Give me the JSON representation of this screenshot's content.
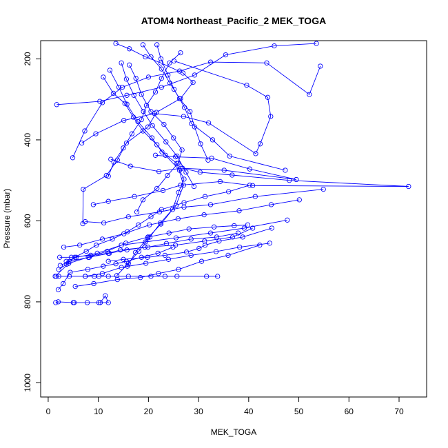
{
  "chart_data": {
    "type": "line",
    "title": "ATOM4 Northeast_Pacific_2 MEK_TOGA",
    "xlabel": "MEK_TOGA",
    "ylabel": "Pressure (mbar)",
    "xlim": [
      -1.5,
      75.5
    ],
    "ylim": [
      1035,
      155
    ],
    "y_inverted": true,
    "x_ticks": [
      "0",
      "10",
      "20",
      "30",
      "40",
      "50",
      "60",
      "70"
    ],
    "y_ticks": [
      "200",
      "400",
      "600",
      "800",
      "1000"
    ],
    "series": [
      {
        "color": "#0000ff",
        "x": [
          1.5,
          2.0,
          5.2,
          10.4,
          11.4,
          12.0,
          10.1,
          7.8,
          5.0
        ],
        "y": [
          802,
          800,
          802,
          802,
          785,
          802,
          802,
          802,
          802
        ]
      },
      {
        "color": "#0000ff",
        "x": [
          1.6,
          2.1,
          4.2,
          7.4,
          9.2,
          10.1,
          12.0,
          16.0,
          20.5,
          23.3,
          25.7,
          31.6,
          33.8
        ],
        "y": [
          737,
          737,
          737,
          737,
          737,
          737,
          737,
          737,
          737,
          737,
          737,
          737,
          737
        ]
      },
      {
        "color": "#0000ff",
        "x": [
          2.0,
          3.0,
          4.4,
          7.9,
          11.0,
          13.5,
          15.6,
          18.6,
          21.9,
          24.9
        ],
        "y": [
          770,
          755,
          727,
          720,
          712,
          706,
          700,
          690,
          680,
          665
        ]
      },
      {
        "color": "#0000ff",
        "x": [
          2.4,
          4.3,
          8.2,
          12.2,
          15.7,
          19.3,
          25.4,
          31.2,
          36.8,
          40.8
        ],
        "y": [
          710,
          700,
          690,
          680,
          672,
          665,
          660,
          650,
          640,
          618
        ]
      },
      {
        "color": "#0000ff",
        "x": [
          3.6,
          5.6,
          9.8,
          14.6,
          19.4,
          25.5,
          32.4,
          39.1,
          47.7
        ],
        "y": [
          700,
          690,
          680,
          660,
          652,
          642,
          630,
          618,
          598
        ]
      },
      {
        "color": "#0000ff",
        "x": [
          3.1,
          6.3,
          10.8,
          15.1,
          20.2,
          25.9,
          31.1,
          38.1,
          44.5,
          50.1
        ],
        "y": [
          665,
          660,
          645,
          632,
          610,
          595,
          585,
          575,
          560,
          548
        ]
      },
      {
        "color": "#0000ff",
        "x": [
          7.4,
          11.1,
          16.0,
          22.2,
          27.1,
          32.4,
          41.3,
          54.9
        ],
        "y": [
          602,
          605,
          590,
          578,
          566,
          560,
          540,
          522
        ]
      },
      {
        "color": "#0000ff",
        "x": [
          9.0,
          12.0,
          17.2,
          22.9,
          26.4,
          34.3,
          40.8,
          71.9,
          48.1,
          36.7,
          30.3,
          26.8
        ],
        "y": [
          560,
          552,
          540,
          525,
          512,
          503,
          513,
          515,
          500,
          487,
          480,
          470
        ]
      },
      {
        "color": "#0000ff",
        "x": [
          12.5,
          16.4,
          22.1,
          26.5,
          35.1,
          49.5,
          40.2,
          32.6,
          25.4,
          21.4
        ],
        "y": [
          448,
          465,
          478,
          470,
          475,
          498,
          472,
          445,
          442,
          438
        ]
      },
      {
        "color": "#0000ff",
        "x": [
          6.7,
          9.5,
          15.1,
          21.2,
          27.0,
          32.0,
          41.4,
          42.3,
          44.4,
          43.8,
          39.6,
          25.1
        ],
        "y": [
          408,
          385,
          352,
          335,
          342,
          358,
          434,
          410,
          342,
          295,
          265,
          205
        ]
      },
      {
        "color": "#0000ff",
        "x": [
          4.9,
          7.3,
          10.8,
          14.8,
          20.0,
          26.2,
          32.4,
          43.6,
          52.1,
          54.3
        ],
        "y": [
          444,
          378,
          308,
          270,
          245,
          230,
          208,
          210,
          288,
          218
        ]
      },
      {
        "color": "#0000ff",
        "x": [
          1.7,
          10.3,
          15.7,
          22.6,
          29.2,
          35.4,
          45.1,
          53.5
        ],
        "y": [
          313,
          305,
          290,
          270,
          240,
          190,
          168,
          162
        ]
      },
      {
        "color": "#0000ff",
        "x": [
          13.5,
          16.2,
          19.4,
          22.5,
          26.9,
          28.9,
          26.4,
          21.6,
          19.9,
          15.6,
          13.8,
          11.6,
          7.0,
          6.9
        ],
        "y": [
          162,
          175,
          195,
          210,
          235,
          258,
          298,
          332,
          368,
          408,
          450,
          488,
          522,
          607
        ]
      },
      {
        "color": "#0000ff",
        "x": [
          12.3,
          14.1,
          15.7,
          17.9,
          20.7,
          22.7,
          25.7,
          27.0,
          25.5,
          22.4,
          20.3,
          18.1,
          16.0,
          13.7
        ],
        "y": [
          228,
          270,
          312,
          355,
          395,
          430,
          458,
          512,
          562,
          605,
          640,
          675,
          705,
          735
        ]
      },
      {
        "color": "#0000ff",
        "x": [
          11.0,
          13.0,
          15.3,
          17.0,
          18.9,
          21.7,
          23.4,
          26.2,
          27.1,
          26.0,
          24.8,
          22.5,
          19.9,
          17.4,
          15.8
        ],
        "y": [
          245,
          285,
          310,
          344,
          378,
          412,
          438,
          475,
          497,
          530,
          572,
          608,
          642,
          678,
          712
        ]
      },
      {
        "color": "#0000ff",
        "x": [
          16.2,
          17.5,
          18.6,
          20.5,
          23.1,
          25.0,
          26.7,
          25.9,
          23.8,
          21.7,
          18.9,
          17.7
        ],
        "y": [
          215,
          248,
          288,
          330,
          362,
          395,
          425,
          458,
          488,
          520,
          548,
          578
        ]
      },
      {
        "color": "#0000ff",
        "x": [
          14.6,
          15.6,
          17.1,
          19.0,
          20.8,
          23.5,
          25.7,
          27.5,
          29.1
        ],
        "y": [
          210,
          250,
          290,
          330,
          365,
          405,
          440,
          480,
          515
        ]
      },
      {
        "color": "#0000ff",
        "x": [
          18.9,
          20.5,
          22.6,
          24.3,
          26.2,
          28.3,
          29.2,
          30.4,
          31.9
        ],
        "y": [
          165,
          195,
          225,
          260,
          298,
          330,
          368,
          410,
          450
        ]
      },
      {
        "color": "#0000ff",
        "x": [
          21.7,
          22.5,
          23.9,
          25.1,
          27.2,
          28.6,
          32.8,
          36.2,
          47.3
        ],
        "y": [
          165,
          200,
          240,
          275,
          320,
          360,
          400,
          440,
          475
        ]
      },
      {
        "color": "#0000ff",
        "x": [
          26.4,
          24.2,
          22.6,
          21.4,
          19.6,
          18.6,
          16.7,
          15.0,
          13.1,
          12.0
        ],
        "y": [
          185,
          210,
          248,
          282,
          315,
          350,
          385,
          420,
          455,
          490
        ]
      },
      {
        "color": "#0000ff",
        "x": [
          2.1,
          3.7,
          5.3,
          7.6,
          9.6,
          12.8,
          15.8,
          18.0,
          20.5,
          22.6,
          27.1,
          31.3,
          36.0,
          40.2
        ],
        "y": [
          720,
          707,
          690,
          675,
          660,
          645,
          627,
          610,
          590,
          572,
          555,
          540,
          528,
          512
        ]
      },
      {
        "color": "#0000ff",
        "x": [
          1.4,
          4.1,
          8.0,
          11.8,
          15.5,
          19.9,
          24.1,
          28.1,
          33.1,
          37.1,
          39.8
        ],
        "y": [
          737,
          705,
          690,
          675,
          655,
          640,
          630,
          620,
          615,
          612,
          610
        ]
      },
      {
        "color": "#0000ff",
        "x": [
          5.4,
          9.1,
          13.8,
          18.4,
          22.0,
          26.0,
          30.6,
          35.9,
          42.2
        ],
        "y": [
          762,
          755,
          745,
          740,
          730,
          720,
          700,
          685,
          660
        ]
      },
      {
        "color": "#0000ff",
        "x": [
          2.3,
          4.6,
          8.5,
          12.0,
          14.4,
          19.9,
          23.6,
          28.5,
          33.6,
          37.9
        ],
        "y": [
          690,
          690,
          685,
          680,
          672,
          665,
          656,
          645,
          640,
          630
        ]
      },
      {
        "color": "#0000ff",
        "x": [
          12.0,
          15.0,
          19.8,
          23.3,
          27.6,
          30.1,
          31.3,
          34.1,
          38.8,
          44.6
        ],
        "y": [
          700,
          695,
          690,
          685,
          677,
          668,
          660,
          650,
          640,
          618
        ]
      },
      {
        "color": "#0000ff",
        "x": [
          7.4,
          10.8,
          14.6,
          19.5,
          24.0,
          28.5,
          33.5,
          38.2,
          44.2
        ],
        "y": [
          737,
          730,
          715,
          705,
          695,
          685,
          676,
          665,
          655
        ]
      }
    ]
  }
}
